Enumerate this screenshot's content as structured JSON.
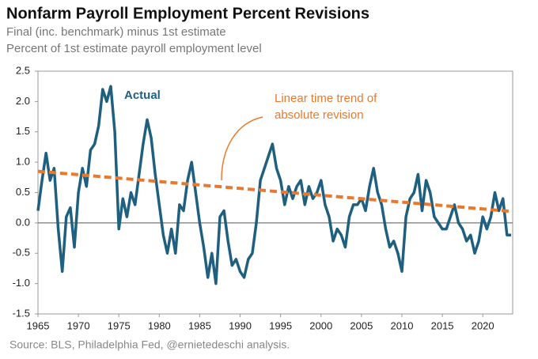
{
  "chart_data": {
    "type": "line",
    "title": "Nonfarm Payroll Employment Percent Revisions",
    "subtitle": [
      "Final (inc. benchmark) minus 1st estimate",
      "Percent of 1st estimate payroll employment level"
    ],
    "source": "Source: BLS, Philadelphia Fed, @ernietedeschi analysis.",
    "xlim": [
      1965,
      2023.7
    ],
    "xticks": [
      1965,
      1970,
      1975,
      1980,
      1985,
      1990,
      1995,
      2000,
      2005,
      2010,
      2015,
      2020
    ],
    "ylim": [
      -1.5,
      2.5
    ],
    "yticks": [
      {
        "value": -1.5,
        "label": "-1.5"
      },
      {
        "value": -1,
        "label": "-1.0"
      },
      {
        "value": -0.5,
        "label": "-0.5"
      },
      {
        "value": 0,
        "label": "0.0"
      },
      {
        "value": 0.5,
        "label": "0.5"
      },
      {
        "value": 1,
        "label": "1.0"
      },
      {
        "value": 1.5,
        "label": "1.5"
      },
      {
        "value": 2,
        "label": "2.0"
      },
      {
        "value": 2.5,
        "label": "2.5"
      }
    ],
    "series": [
      {
        "name": "Actual",
        "color": "#1f5f80",
        "x": [
          1965,
          1965.5,
          1966,
          1966.5,
          1967,
          1967.5,
          1968,
          1968.5,
          1969,
          1969.5,
          1970,
          1970.5,
          1971,
          1971.5,
          1972,
          1972.5,
          1973,
          1973.5,
          1974,
          1974.5,
          1975,
          1975.5,
          1976,
          1976.5,
          1977,
          1977.5,
          1978,
          1978.5,
          1979,
          1979.5,
          1980,
          1980.5,
          1981,
          1981.5,
          1982,
          1982.5,
          1983,
          1983.5,
          1984,
          1984.5,
          1985,
          1985.5,
          1986,
          1986.5,
          1987,
          1987.5,
          1988,
          1988.5,
          1989,
          1989.5,
          1990,
          1990.5,
          1991,
          1991.5,
          1992,
          1992.5,
          1993,
          1993.5,
          1994,
          1994.5,
          1995,
          1995.5,
          1996,
          1996.5,
          1997,
          1997.5,
          1998,
          1998.5,
          1999,
          1999.5,
          2000,
          2000.5,
          2001,
          2001.5,
          2002,
          2002.5,
          2003,
          2003.5,
          2004,
          2004.5,
          2005,
          2005.5,
          2006,
          2006.5,
          2007,
          2007.5,
          2008,
          2008.5,
          2009,
          2009.5,
          2010,
          2010.5,
          2011,
          2011.5,
          2012,
          2012.5,
          2013,
          2013.5,
          2014,
          2014.5,
          2015,
          2015.5,
          2016,
          2016.5,
          2017,
          2017.5,
          2018,
          2018.5,
          2019,
          2019.5,
          2020,
          2020.5,
          2021,
          2021.5,
          2022,
          2022.5,
          2023,
          2023.5
        ],
        "values": [
          0.2,
          0.7,
          1.15,
          0.7,
          0.9,
          -0.1,
          -0.8,
          0.1,
          0.25,
          -0.4,
          0.5,
          0.9,
          0.6,
          1.2,
          1.3,
          1.6,
          2.2,
          2.0,
          2.25,
          1.5,
          -0.1,
          0.4,
          0.1,
          0.5,
          0.3,
          0.8,
          1.3,
          1.7,
          1.4,
          0.8,
          0.3,
          -0.2,
          -0.5,
          -0.1,
          -0.5,
          0.3,
          0.2,
          0.7,
          1.0,
          0.5,
          0.0,
          -0.4,
          -0.9,
          -0.5,
          -1.0,
          0.1,
          0.2,
          -0.3,
          -0.7,
          -0.6,
          -0.8,
          -0.9,
          -0.6,
          -0.5,
          0.0,
          0.7,
          0.9,
          1.1,
          1.3,
          0.9,
          0.7,
          0.3,
          0.6,
          0.4,
          0.6,
          0.7,
          0.3,
          0.6,
          0.4,
          0.5,
          0.7,
          0.3,
          0.1,
          -0.3,
          -0.1,
          -0.2,
          -0.4,
          0.1,
          0.3,
          0.3,
          0.4,
          0.2,
          0.6,
          0.9,
          0.5,
          0.3,
          -0.1,
          -0.4,
          -0.3,
          -0.5,
          -0.8,
          0.1,
          0.4,
          0.5,
          0.8,
          0.2,
          0.7,
          0.5,
          0.1,
          0.0,
          -0.1,
          -0.1,
          0.1,
          0.3,
          0.0,
          -0.1,
          -0.3,
          -0.2,
          -0.5,
          -0.3,
          0.1,
          -0.1,
          0.1,
          0.5,
          0.2,
          0.4,
          -0.2,
          -0.2
        ]
      },
      {
        "name": "Linear time trend of absolute revision",
        "color": "#e8792f",
        "dashed": true,
        "x": [
          1965,
          2023.5
        ],
        "values": [
          0.85,
          0.19
        ]
      }
    ],
    "annotations": [
      {
        "text": "Actual"
      },
      {
        "text": [
          "Linear time trend of",
          "absolute revision"
        ]
      }
    ],
    "grid": false
  }
}
